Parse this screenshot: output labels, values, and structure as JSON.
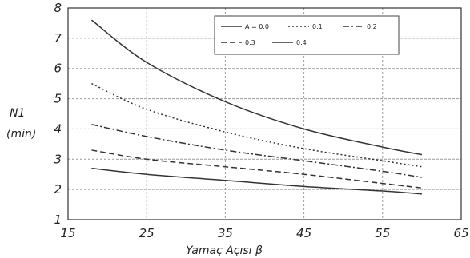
{
  "chart_data": {
    "type": "line",
    "xlabel": "Yamaç Açısı β",
    "ylabel_line1": "N1",
    "ylabel_line2": "(min)",
    "xlim": [
      15,
      65
    ],
    "ylim": [
      1,
      8
    ],
    "xticks": [
      15,
      25,
      35,
      45,
      55,
      65
    ],
    "yticks": [
      1,
      2,
      3,
      4,
      5,
      6,
      7,
      8
    ],
    "grid": true,
    "legend_position": "top-right",
    "series": [
      {
        "name": "A = 0.0",
        "style": "solid",
        "x": [
          18,
          25,
          35,
          45,
          55,
          60
        ],
        "y": [
          7.6,
          6.2,
          4.9,
          4.0,
          3.4,
          3.15
        ]
      },
      {
        "name": "0.1",
        "style": "dotted",
        "x": [
          18,
          25,
          35,
          45,
          55,
          60
        ],
        "y": [
          5.5,
          4.65,
          3.9,
          3.35,
          2.95,
          2.75
        ]
      },
      {
        "name": "0.2",
        "style": "dash-dot",
        "x": [
          18,
          25,
          35,
          45,
          55,
          60
        ],
        "y": [
          4.15,
          3.75,
          3.3,
          2.95,
          2.6,
          2.4
        ]
      },
      {
        "name": "0.3",
        "style": "dashed",
        "x": [
          18,
          25,
          35,
          45,
          55,
          60
        ],
        "y": [
          3.3,
          3.0,
          2.75,
          2.5,
          2.2,
          2.05
        ]
      },
      {
        "name": "0.4",
        "style": "solid",
        "x": [
          18,
          25,
          35,
          45,
          55,
          60
        ],
        "y": [
          2.7,
          2.5,
          2.3,
          2.1,
          1.95,
          1.85
        ]
      }
    ]
  }
}
